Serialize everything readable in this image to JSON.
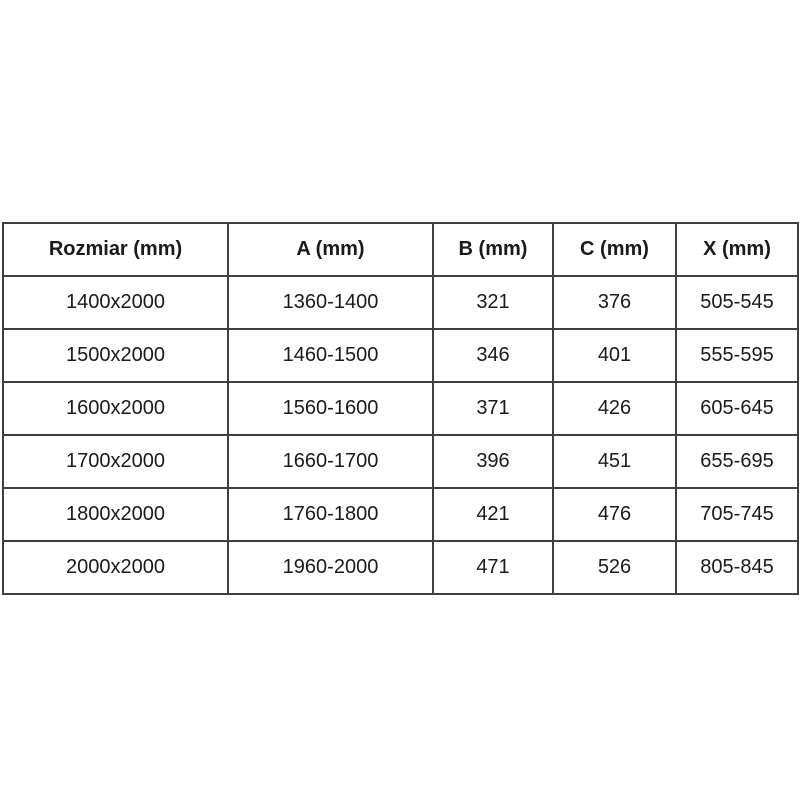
{
  "table": {
    "name": "size-dimensions-table",
    "headers": [
      "Rozmiar (mm)",
      "A (mm)",
      "B (mm)",
      "C (mm)",
      "X (mm)"
    ],
    "rows": [
      [
        "1400x2000",
        "1360-1400",
        "321",
        "376",
        "505-545"
      ],
      [
        "1500x2000",
        "1460-1500",
        "346",
        "401",
        "555-595"
      ],
      [
        "1600x2000",
        "1560-1600",
        "371",
        "426",
        "605-645"
      ],
      [
        "1700x2000",
        "1660-1700",
        "396",
        "451",
        "655-695"
      ],
      [
        "1800x2000",
        "1760-1800",
        "421",
        "476",
        "705-745"
      ],
      [
        "2000x2000",
        "1960-2000",
        "471",
        "526",
        "805-845"
      ]
    ],
    "colors": {
      "border": "#3f3f3f",
      "text": "#1a1a1a",
      "background": "#ffffff"
    }
  }
}
